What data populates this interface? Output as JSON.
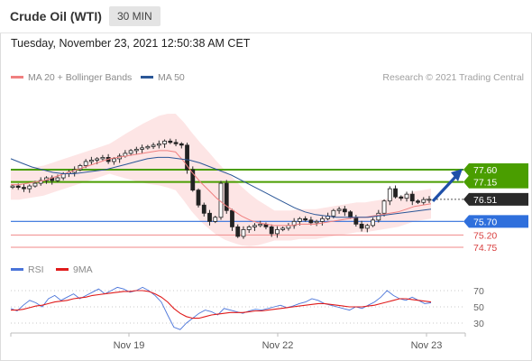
{
  "header": {
    "instrument": "Crude Oil (WTI)",
    "timeframe": "30 MIN"
  },
  "datetime": "Tuesday, November 23, 2021 12:50:38 AM CET",
  "legend": {
    "ma20_label": "MA 20 + Bollinger Bands",
    "ma50_label": "MA 50",
    "credit": "Research © 2021 Trading Central",
    "rsi_label": "RSI",
    "rsi_ma_label": "9MA"
  },
  "colors": {
    "ma20": "#f08080",
    "ma50": "#2b5797",
    "bollinger_fill": "#fde4e4",
    "resistance": "#4a9e00",
    "pivot": "#2f6fdc",
    "support": "#f08a8a",
    "current": "#2a2a2a",
    "rsi": "#4a74d9",
    "rsi_ma": "#e01b1b"
  },
  "chart_data": [
    {
      "type": "candlestick",
      "title": "Crude Oil (WTI)",
      "timeframe": "30 MIN",
      "x_tick_labels": [
        "Nov 19",
        "Nov 22",
        "Nov 23"
      ],
      "y_range": [
        74.5,
        78.5
      ],
      "current_price": 76.51,
      "levels": [
        {
          "label": "77.60",
          "value": 77.6,
          "kind": "resistance"
        },
        {
          "label": "77.15",
          "value": 77.15,
          "kind": "resistance"
        },
        {
          "label": "76.51",
          "value": 76.51,
          "kind": "last"
        },
        {
          "label": "75.70",
          "value": 75.7,
          "kind": "pivot"
        },
        {
          "label": "75.20",
          "value": 75.2,
          "kind": "support"
        },
        {
          "label": "74.75",
          "value": 74.75,
          "kind": "support"
        }
      ],
      "closes": [
        77.0,
        76.95,
        76.9,
        77.0,
        77.1,
        77.2,
        77.3,
        77.2,
        77.3,
        77.45,
        77.5,
        77.6,
        77.75,
        77.9,
        77.95,
        78.0,
        78.05,
        77.9,
        78.0,
        78.1,
        78.2,
        78.3,
        78.35,
        78.4,
        78.45,
        78.5,
        78.55,
        78.65,
        78.6,
        78.55,
        78.5,
        77.6,
        76.85,
        76.3,
        76.0,
        75.7,
        75.85,
        77.1,
        76.1,
        75.5,
        75.15,
        75.4,
        75.5,
        75.55,
        75.6,
        75.5,
        75.25,
        75.4,
        75.45,
        75.55,
        75.7,
        75.8,
        75.75,
        75.65,
        75.7,
        75.8,
        75.9,
        76.1,
        76.15,
        76.05,
        75.85,
        75.6,
        75.45,
        75.55,
        75.75,
        76.0,
        76.45,
        76.9,
        76.6,
        76.55,
        76.7,
        76.45,
        76.4,
        76.5,
        76.51
      ],
      "ma20": [
        77.05,
        77.05,
        77.1,
        77.15,
        77.2,
        77.3,
        77.4,
        77.5,
        77.6,
        77.7,
        77.8,
        77.9,
        78.0,
        78.05,
        78.1,
        78.15,
        78.2,
        78.25,
        78.3,
        78.3,
        78.25,
        77.9,
        77.5,
        77.15,
        76.85,
        76.55,
        76.3,
        76.1,
        75.9,
        75.75,
        75.65,
        75.6,
        75.55,
        75.55,
        75.55,
        75.6,
        75.6,
        75.6,
        75.65,
        75.7,
        75.75,
        75.8,
        75.85,
        75.85,
        75.9,
        75.95,
        76.0,
        76.05,
        76.15,
        76.25,
        76.3,
        76.35
      ],
      "ma50": [
        78.0,
        77.85,
        77.7,
        77.6,
        77.5,
        77.45,
        77.45,
        77.5,
        77.55,
        77.6,
        77.7,
        77.8,
        77.9,
        78.0,
        78.05,
        78.05,
        78.0,
        77.95,
        77.85,
        77.7,
        77.55,
        77.4,
        77.2,
        77.0,
        76.8,
        76.6,
        76.4,
        76.2,
        76.05,
        75.95,
        75.9,
        75.85,
        75.85,
        75.85,
        75.85,
        75.9,
        75.95,
        76.0,
        76.05,
        76.1,
        76.15
      ]
    },
    {
      "type": "line",
      "title": "RSI",
      "series": [
        {
          "name": "RSI",
          "values": [
            48,
            45,
            52,
            58,
            55,
            50,
            60,
            64,
            58,
            62,
            66,
            60,
            64,
            68,
            72,
            66,
            70,
            74,
            72,
            68,
            70,
            74,
            70,
            64,
            56,
            40,
            25,
            22,
            30,
            36,
            42,
            46,
            44,
            40,
            48,
            46,
            44,
            42,
            45,
            47,
            46,
            48,
            50,
            52,
            49,
            51,
            54,
            56,
            60,
            58,
            54,
            52,
            50,
            48,
            46,
            50,
            48,
            52,
            56,
            62,
            70,
            64,
            60,
            58,
            62,
            58,
            54,
            55
          ]
        },
        {
          "name": "9MA",
          "values": [
            46,
            46,
            47,
            49,
            51,
            52,
            54,
            56,
            57,
            58,
            60,
            61,
            62,
            64,
            65,
            66,
            67,
            68,
            69,
            69,
            70,
            70,
            69,
            66,
            62,
            56,
            48,
            42,
            38,
            36,
            36,
            38,
            40,
            41,
            42,
            43,
            43,
            43,
            44,
            45,
            45,
            46,
            47,
            48,
            49,
            50,
            51,
            52,
            53,
            54,
            54,
            53,
            52,
            51,
            50,
            50,
            50,
            51,
            52,
            54,
            56,
            58,
            60,
            60,
            59,
            58,
            57,
            56
          ]
        }
      ],
      "y_tick_labels": [
        "70",
        "50",
        "30"
      ],
      "y_range": [
        20,
        80
      ]
    }
  ]
}
